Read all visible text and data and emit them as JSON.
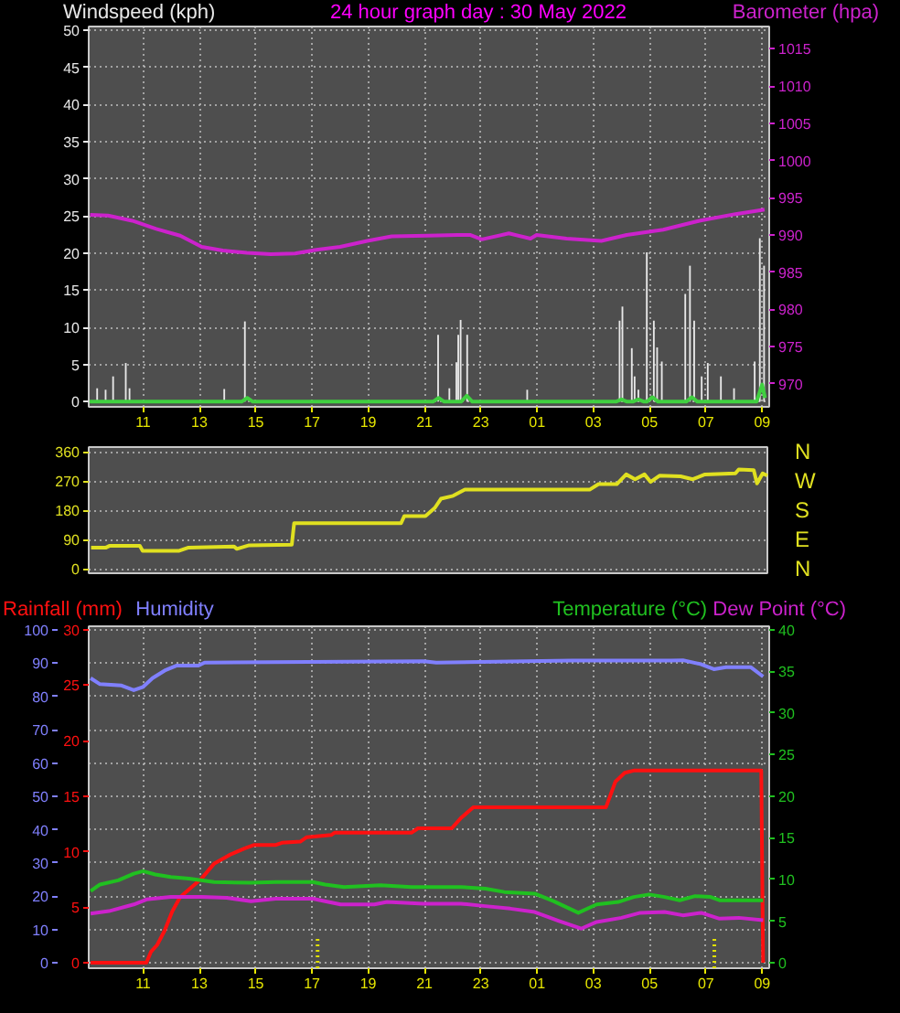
{
  "chart_data": [
    {
      "type": "line",
      "title": "24 hour graph day : 30 May 2022",
      "xlim": [
        "2022-05-29T09:04",
        "2022-05-30T09:15"
      ],
      "xticks": [
        {
          "value": "2022-05-29T11:00",
          "label": "11"
        },
        {
          "value": "2022-05-29T13:00",
          "label": "13"
        },
        {
          "value": "2022-05-29T15:00",
          "label": "15"
        },
        {
          "value": "2022-05-29T17:00",
          "label": "17"
        },
        {
          "value": "2022-05-29T19:00",
          "label": "19"
        },
        {
          "value": "2022-05-29T21:00",
          "label": "21"
        },
        {
          "value": "2022-05-29T23:00",
          "label": "23"
        },
        {
          "value": "2022-05-30T01:00",
          "label": "01"
        },
        {
          "value": "2022-05-30T03:00",
          "label": "03"
        },
        {
          "value": "2022-05-30T05:00",
          "label": "05"
        },
        {
          "value": "2022-05-30T07:00",
          "label": "07"
        },
        {
          "value": "2022-05-30T09:00",
          "label": "09"
        }
      ],
      "ylim": [
        -0.7,
        50.5
      ],
      "yticks": [
        0,
        5,
        10,
        15,
        20,
        25,
        30,
        35,
        40,
        45,
        50
      ],
      "y2lim": [
        966.9,
        1018
      ],
      "y2ticks": [
        970,
        975,
        980,
        985,
        990,
        995,
        1000,
        1005,
        1010,
        1015
      ],
      "grid": true,
      "series": [
        {
          "name": "Windspeed (kph)",
          "type": "bar",
          "color": "#e8e8e8",
          "x": [
            "2022-05-29T09:22",
            "2022-05-29T09:40",
            "2022-05-29T09:56",
            "2022-05-29T10:23",
            "2022-05-29T10:31",
            "2022-05-29T13:53",
            "2022-05-29T14:37",
            "2022-05-29T21:29",
            "2022-05-29T21:53",
            "2022-05-29T22:08",
            "2022-05-29T22:12",
            "2022-05-29T22:17",
            "2022-05-29T22:31",
            "2022-05-30T00:39",
            "2022-05-30T03:56",
            "2022-05-30T04:02",
            "2022-05-30T04:22",
            "2022-05-30T04:28",
            "2022-05-30T04:36",
            "2022-05-30T04:54",
            "2022-05-30T05:09",
            "2022-05-30T05:16",
            "2022-05-30T05:26",
            "2022-05-30T06:16",
            "2022-05-30T06:26",
            "2022-05-30T06:35",
            "2022-05-30T06:51",
            "2022-05-30T07:04",
            "2022-05-30T07:32",
            "2022-05-30T08:00",
            "2022-05-30T08:44",
            "2022-05-30T08:55",
            "2022-05-30T09:04"
          ],
          "values": [
            1.8,
            1.6,
            3.4,
            5.2,
            1.8,
            1.7,
            10.8,
            9.0,
            1.8,
            5.3,
            9.0,
            11.0,
            9.0,
            1.6,
            10.9,
            12.8,
            7.2,
            3.4,
            1.6,
            20.1,
            10.9,
            7.3,
            5.4,
            14.5,
            18.3,
            10.9,
            3.4,
            5.2,
            3.4,
            1.8,
            5.4,
            22.0,
            18.3
          ]
        },
        {
          "color": "#40d040",
          "x": [
            "2022-05-29T09:06",
            "2022-05-29T14:30",
            "2022-05-29T14:42",
            "2022-05-29T14:54",
            "2022-05-29T21:18",
            "2022-05-29T21:30",
            "2022-05-29T21:42",
            "2022-05-29T22:18",
            "2022-05-29T22:30",
            "2022-05-29T22:42",
            "2022-05-30T03:48",
            "2022-05-30T04:00",
            "2022-05-30T04:12",
            "2022-05-30T04:24",
            "2022-05-30T04:36",
            "2022-05-30T04:48",
            "2022-05-30T04:54",
            "2022-05-30T05:06",
            "2022-05-30T05:18",
            "2022-05-30T06:18",
            "2022-05-30T06:30",
            "2022-05-30T06:42",
            "2022-05-30T08:48",
            "2022-05-30T09:00",
            "2022-05-30T09:06"
          ],
          "values": [
            0,
            0,
            0.5,
            0,
            0,
            0.5,
            0,
            0,
            0.8,
            0,
            0,
            0.3,
            0,
            0,
            0.3,
            0,
            0,
            0.6,
            0,
            0,
            0.6,
            0,
            0,
            2.3,
            0.5
          ]
        },
        {
          "name": "Barometer (hpa)",
          "axis": "y2",
          "color": "#cc22cc",
          "x": [
            "2022-05-29T09:07",
            "2022-05-29T09:45",
            "2022-05-29T10:37",
            "2022-05-29T11:28",
            "2022-05-29T12:19",
            "2022-05-29T13:05",
            "2022-05-29T13:50",
            "2022-05-29T14:41",
            "2022-05-29T15:32",
            "2022-05-29T16:24",
            "2022-05-29T17:09",
            "2022-05-29T18:00",
            "2022-05-29T18:58",
            "2022-05-29T19:50",
            "2022-05-29T21:07",
            "2022-05-29T22:11",
            "2022-05-29T22:37",
            "2022-05-29T23:02",
            "2022-05-30T00:00",
            "2022-05-30T00:46",
            "2022-05-30T00:59",
            "2022-05-30T02:03",
            "2022-05-30T03:17",
            "2022-05-30T04:11",
            "2022-05-30T05:29",
            "2022-05-30T06:46",
            "2022-05-30T08:03",
            "2022-05-30T09:05"
          ],
          "values": [
            992.7,
            992.6,
            991.9,
            990.8,
            989.9,
            988.4,
            987.9,
            987.6,
            987.4,
            987.5,
            988.0,
            988.4,
            989.2,
            989.8,
            989.9,
            990.0,
            990.0,
            989.4,
            990.2,
            989.5,
            990.0,
            989.5,
            989.2,
            990.0,
            990.7,
            991.9,
            992.8,
            993.4
          ]
        }
      ]
    },
    {
      "type": "line",
      "xlim": [
        "2022-05-29T09:04",
        "2022-05-30T09:15"
      ],
      "ylim": [
        -13,
        375
      ],
      "yticks": [
        0,
        90,
        180,
        270,
        360
      ],
      "grid": "y",
      "tick_labels": "y",
      "annotations": [
        "N",
        "W",
        "S",
        "E",
        "N"
      ],
      "series": [
        {
          "color": "#e0e020",
          "x": [
            "2022-05-29T09:09",
            "2022-05-29T09:41",
            "2022-05-29T09:48",
            "2022-05-29T10:53",
            "2022-05-29T10:59",
            "2022-05-29T12:17",
            "2022-05-29T12:37",
            "2022-05-29T14:14",
            "2022-05-29T14:20",
            "2022-05-29T14:46",
            "2022-05-29T16:17",
            "2022-05-29T16:22",
            "2022-05-29T20:10",
            "2022-05-29T20:17",
            "2022-05-29T21:02",
            "2022-05-29T21:22",
            "2022-05-29T21:35",
            "2022-05-29T22:01",
            "2022-05-29T22:26",
            "2022-05-30T02:52",
            "2022-05-30T03:11",
            "2022-05-30T03:50",
            "2022-05-30T04:10",
            "2022-05-30T04:29",
            "2022-05-30T04:49",
            "2022-05-30T05:02",
            "2022-05-30T05:21",
            "2022-05-30T06:06",
            "2022-05-30T06:32",
            "2022-05-30T06:58",
            "2022-05-30T08:03",
            "2022-05-30T08:10",
            "2022-05-30T08:42",
            "2022-05-30T08:49",
            "2022-05-30T09:01",
            "2022-05-30T09:11"
          ],
          "values": [
            66,
            66,
            71,
            71,
            56,
            56,
            66,
            69,
            62,
            73,
            75,
            141,
            141,
            163,
            163,
            188,
            216,
            225,
            244,
            244,
            261,
            261,
            291,
            276,
            291,
            268,
            287,
            285,
            276,
            291,
            294,
            306,
            304,
            263,
            294,
            287
          ]
        }
      ]
    },
    {
      "type": "line",
      "xlim": [
        "2022-05-29T09:04",
        "2022-05-30T09:15"
      ],
      "xticks": [
        {
          "value": "2022-05-29T11:00",
          "label": "11"
        },
        {
          "value": "2022-05-29T13:00",
          "label": "13"
        },
        {
          "value": "2022-05-29T15:00",
          "label": "15"
        },
        {
          "value": "2022-05-29T17:00",
          "label": "17"
        },
        {
          "value": "2022-05-29T19:00",
          "label": "19"
        },
        {
          "value": "2022-05-29T21:00",
          "label": "21"
        },
        {
          "value": "2022-05-29T23:00",
          "label": "23"
        },
        {
          "value": "2022-05-30T01:00",
          "label": "01"
        },
        {
          "value": "2022-05-30T03:00",
          "label": "03"
        },
        {
          "value": "2022-05-30T05:00",
          "label": "05"
        },
        {
          "value": "2022-05-30T07:00",
          "label": "07"
        },
        {
          "value": "2022-05-30T09:00",
          "label": "09"
        }
      ],
      "ylim": [
        -1.6,
        101.1
      ],
      "yticks": [
        0,
        10,
        20,
        30,
        40,
        50,
        60,
        70,
        80,
        90,
        100
      ],
      "y2lim": [
        -0.65,
        40.4
      ],
      "y2ticks": [
        0,
        5,
        10,
        15,
        20,
        25,
        30,
        35,
        40
      ],
      "y3lim": [
        -0.5,
        30.3
      ],
      "y3ticks": [
        0,
        5,
        10,
        15,
        20,
        25,
        30
      ],
      "grid": true,
      "series": [
        {
          "name": "Rainfall (mm)",
          "axis": "y3",
          "color": "#ff1010",
          "x": [
            "2022-05-29T09:08",
            "2022-05-29T11:07",
            "2022-05-29T11:17",
            "2022-05-29T11:30",
            "2022-05-29T11:46",
            "2022-05-29T12:02",
            "2022-05-29T12:19",
            "2022-05-29T12:38",
            "2022-05-29T13:05",
            "2022-05-29T13:31",
            "2022-05-29T14:04",
            "2022-05-29T14:37",
            "2022-05-29T14:57",
            "2022-05-29T15:43",
            "2022-05-29T15:56",
            "2022-05-29T16:35",
            "2022-05-29T16:49",
            "2022-05-29T17:41",
            "2022-05-29T17:48",
            "2022-05-29T20:32",
            "2022-05-29T20:46",
            "2022-05-29T21:58",
            "2022-05-29T22:17",
            "2022-05-29T22:44",
            "2022-05-30T03:27",
            "2022-05-30T03:47",
            "2022-05-30T04:07",
            "2022-05-30T04:26",
            "2022-05-30T08:58",
            "2022-05-30T09:02"
          ],
          "values": [
            0,
            0,
            1.0,
            1.6,
            2.9,
            4.6,
            5.9,
            6.6,
            7.6,
            8.9,
            9.7,
            10.3,
            10.6,
            10.6,
            10.8,
            10.9,
            11.3,
            11.5,
            11.7,
            11.7,
            12.1,
            12.1,
            13.0,
            14.0,
            14.0,
            16.3,
            17.1,
            17.3,
            17.3,
            0
          ]
        },
        {
          "name": "Humidity",
          "color": "#8080ff",
          "x": [
            "2022-05-29T09:08",
            "2022-05-29T09:28",
            "2022-05-29T10:14",
            "2022-05-29T10:40",
            "2022-05-29T11:00",
            "2022-05-29T11:20",
            "2022-05-29T11:46",
            "2022-05-29T12:12",
            "2022-05-29T12:58",
            "2022-05-29T13:11",
            "2022-05-29T20:58",
            "2022-05-29T21:25",
            "2022-05-30T02:14",
            "2022-05-30T05:45",
            "2022-05-30T06:11",
            "2022-05-30T06:50",
            "2022-05-30T07:17",
            "2022-05-30T07:43",
            "2022-05-30T08:36",
            "2022-05-30T09:02"
          ],
          "values": [
            85.5,
            83.7,
            83.3,
            81.9,
            82.9,
            85.5,
            87.8,
            89.3,
            89.3,
            90.2,
            90.6,
            90.2,
            90.8,
            90.8,
            90.9,
            89.7,
            88.2,
            88.8,
            88.8,
            86.0
          ]
        },
        {
          "name": "Temperature (°C)",
          "axis": "y2",
          "color": "#20c020",
          "x": [
            "2022-05-29T09:08",
            "2022-05-29T09:28",
            "2022-05-29T10:07",
            "2022-05-29T10:40",
            "2022-05-29T11:00",
            "2022-05-29T11:26",
            "2022-05-29T11:59",
            "2022-05-29T12:38",
            "2022-05-29T13:31",
            "2022-05-29T14:50",
            "2022-05-29T15:43",
            "2022-05-29T17:02",
            "2022-05-29T17:28",
            "2022-05-29T18:08",
            "2022-05-29T19:26",
            "2022-05-29T20:32",
            "2022-05-29T22:17",
            "2022-05-29T23:10",
            "2022-05-29T23:50",
            "2022-05-30T00:55",
            "2022-05-30T01:35",
            "2022-05-30T02:28",
            "2022-05-30T03:07",
            "2022-05-30T03:53",
            "2022-05-30T04:26",
            "2022-05-30T04:59",
            "2022-05-30T05:32",
            "2022-05-30T06:04",
            "2022-05-30T06:37",
            "2022-05-30T07:10",
            "2022-05-30T07:29",
            "2022-05-30T09:02"
          ],
          "values": [
            8.6,
            9.4,
            9.9,
            10.7,
            11.0,
            10.6,
            10.3,
            10.1,
            9.7,
            9.6,
            9.7,
            9.7,
            9.4,
            9.1,
            9.3,
            9.1,
            9.1,
            8.9,
            8.5,
            8.3,
            7.4,
            6.0,
            7.0,
            7.3,
            7.9,
            8.2,
            7.9,
            7.5,
            8.0,
            7.9,
            7.5,
            7.5
          ]
        },
        {
          "name": "Dew Point (°C)",
          "axis": "y2",
          "color": "#cc22cc",
          "x": [
            "2022-05-29T09:08",
            "2022-05-29T09:47",
            "2022-05-29T10:40",
            "2022-05-29T11:07",
            "2022-05-29T11:59",
            "2022-05-29T13:05",
            "2022-05-29T13:58",
            "2022-05-29T14:50",
            "2022-05-29T15:43",
            "2022-05-29T17:02",
            "2022-05-29T18:01",
            "2022-05-29T19:13",
            "2022-05-29T19:40",
            "2022-05-29T20:58",
            "2022-05-29T22:17",
            "2022-05-29T23:10",
            "2022-05-30T00:03",
            "2022-05-30T00:55",
            "2022-05-30T01:48",
            "2022-05-30T02:34",
            "2022-05-30T03:07",
            "2022-05-30T04:00",
            "2022-05-30T04:40",
            "2022-05-30T05:32",
            "2022-05-30T06:11",
            "2022-05-30T06:50",
            "2022-05-30T07:29",
            "2022-05-30T08:10",
            "2022-05-30T09:02"
          ],
          "values": [
            5.9,
            6.2,
            7.0,
            7.6,
            7.9,
            7.9,
            7.8,
            7.4,
            7.7,
            7.7,
            7.0,
            7.0,
            7.3,
            7.1,
            7.1,
            6.8,
            6.5,
            6.1,
            5.0,
            4.1,
            4.9,
            5.4,
            6.0,
            6.1,
            5.7,
            6.0,
            5.3,
            5.4,
            5.1
          ]
        }
      ],
      "ref_lines": [
        {
          "axis": "x",
          "value": "2022-05-29T17:12",
          "color": "#e0e000",
          "line_style": "dotted"
        },
        {
          "axis": "x",
          "value": "2022-05-30T07:18",
          "color": "#e0e000",
          "line_style": "dotted"
        }
      ]
    }
  ]
}
